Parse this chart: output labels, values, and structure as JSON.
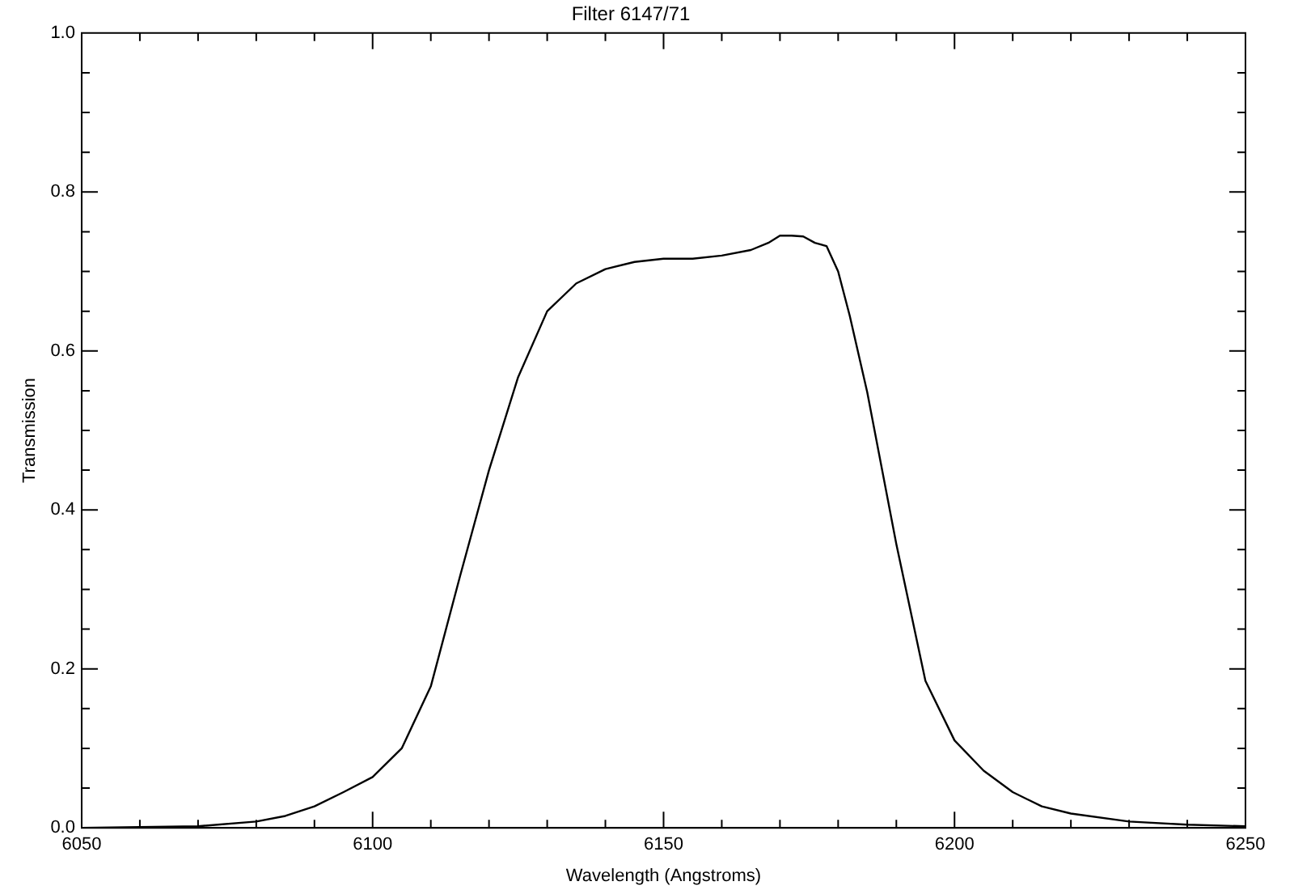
{
  "chart_data": {
    "type": "line",
    "title": "Filter 6147/71",
    "xlabel": "Wavelength (Angstroms)",
    "ylabel": "Transmission",
    "xlim": [
      6050,
      6250
    ],
    "xticks": [
      6050,
      {
        "value": 6060,
        "label": null
      },
      {
        "value": 6070,
        "label": null
      },
      {
        "value": 6080,
        "label": null
      },
      {
        "value": 6090,
        "label": null
      },
      6100,
      {
        "value": 6110,
        "label": null
      },
      {
        "value": 6120,
        "label": null
      },
      {
        "value": 6130,
        "label": null
      },
      {
        "value": 6140,
        "label": null
      },
      6150,
      {
        "value": 6160,
        "label": null
      },
      {
        "value": 6170,
        "label": null
      },
      {
        "value": 6180,
        "label": null
      },
      {
        "value": 6190,
        "label": null
      },
      6200,
      {
        "value": 6210,
        "label": null
      },
      {
        "value": 6220,
        "label": null
      },
      {
        "value": 6230,
        "label": null
      },
      {
        "value": 6240,
        "label": null
      },
      6250
    ],
    "ylim": [
      0,
      1
    ],
    "yticks": [
      {
        "value": 0,
        "label": "0.0"
      },
      {
        "value": 0.05,
        "label": null
      },
      {
        "value": 0.1,
        "label": null
      },
      {
        "value": 0.15,
        "label": null
      },
      {
        "value": 0.2,
        "label": "0.2"
      },
      {
        "value": 0.25,
        "label": null
      },
      {
        "value": 0.3,
        "label": null
      },
      {
        "value": 0.35,
        "label": null
      },
      {
        "value": 0.4,
        "label": "0.4"
      },
      {
        "value": 0.45,
        "label": null
      },
      {
        "value": 0.5,
        "label": null
      },
      {
        "value": 0.55,
        "label": null
      },
      {
        "value": 0.6,
        "label": "0.6"
      },
      {
        "value": 0.65,
        "label": null
      },
      {
        "value": 0.7,
        "label": null
      },
      {
        "value": 0.75,
        "label": null
      },
      {
        "value": 0.8,
        "label": "0.8"
      },
      {
        "value": 0.85,
        "label": null
      },
      {
        "value": 0.9,
        "label": null
      },
      {
        "value": 0.95,
        "label": null
      },
      {
        "value": 1,
        "label": "1.0"
      }
    ],
    "grid": false,
    "legend": false,
    "marker": "none",
    "line_style": "solid",
    "series": [
      {
        "color": "#000000",
        "x": [
          6050,
          6060,
          6070,
          6080,
          6085,
          6090,
          6095,
          6100,
          6105,
          6110,
          6115,
          6120,
          6125,
          6130,
          6135,
          6140,
          6145,
          6150,
          6155,
          6160,
          6165,
          6168,
          6170,
          6172,
          6174,
          6176,
          6178,
          6180,
          6182,
          6185,
          6190,
          6195,
          6200,
          6205,
          6210,
          6215,
          6220,
          6230,
          6240,
          6250
        ],
        "values": [
          0.0,
          0.001,
          0.002,
          0.008,
          0.015,
          0.027,
          0.045,
          0.064,
          0.1,
          0.178,
          0.316,
          0.45,
          0.567,
          0.65,
          0.685,
          0.703,
          0.712,
          0.716,
          0.716,
          0.72,
          0.727,
          0.736,
          0.745,
          0.745,
          0.744,
          0.736,
          0.732,
          0.7,
          0.644,
          0.548,
          0.357,
          0.185,
          0.11,
          0.072,
          0.045,
          0.027,
          0.018,
          0.008,
          0.004,
          0.002
        ]
      }
    ]
  }
}
